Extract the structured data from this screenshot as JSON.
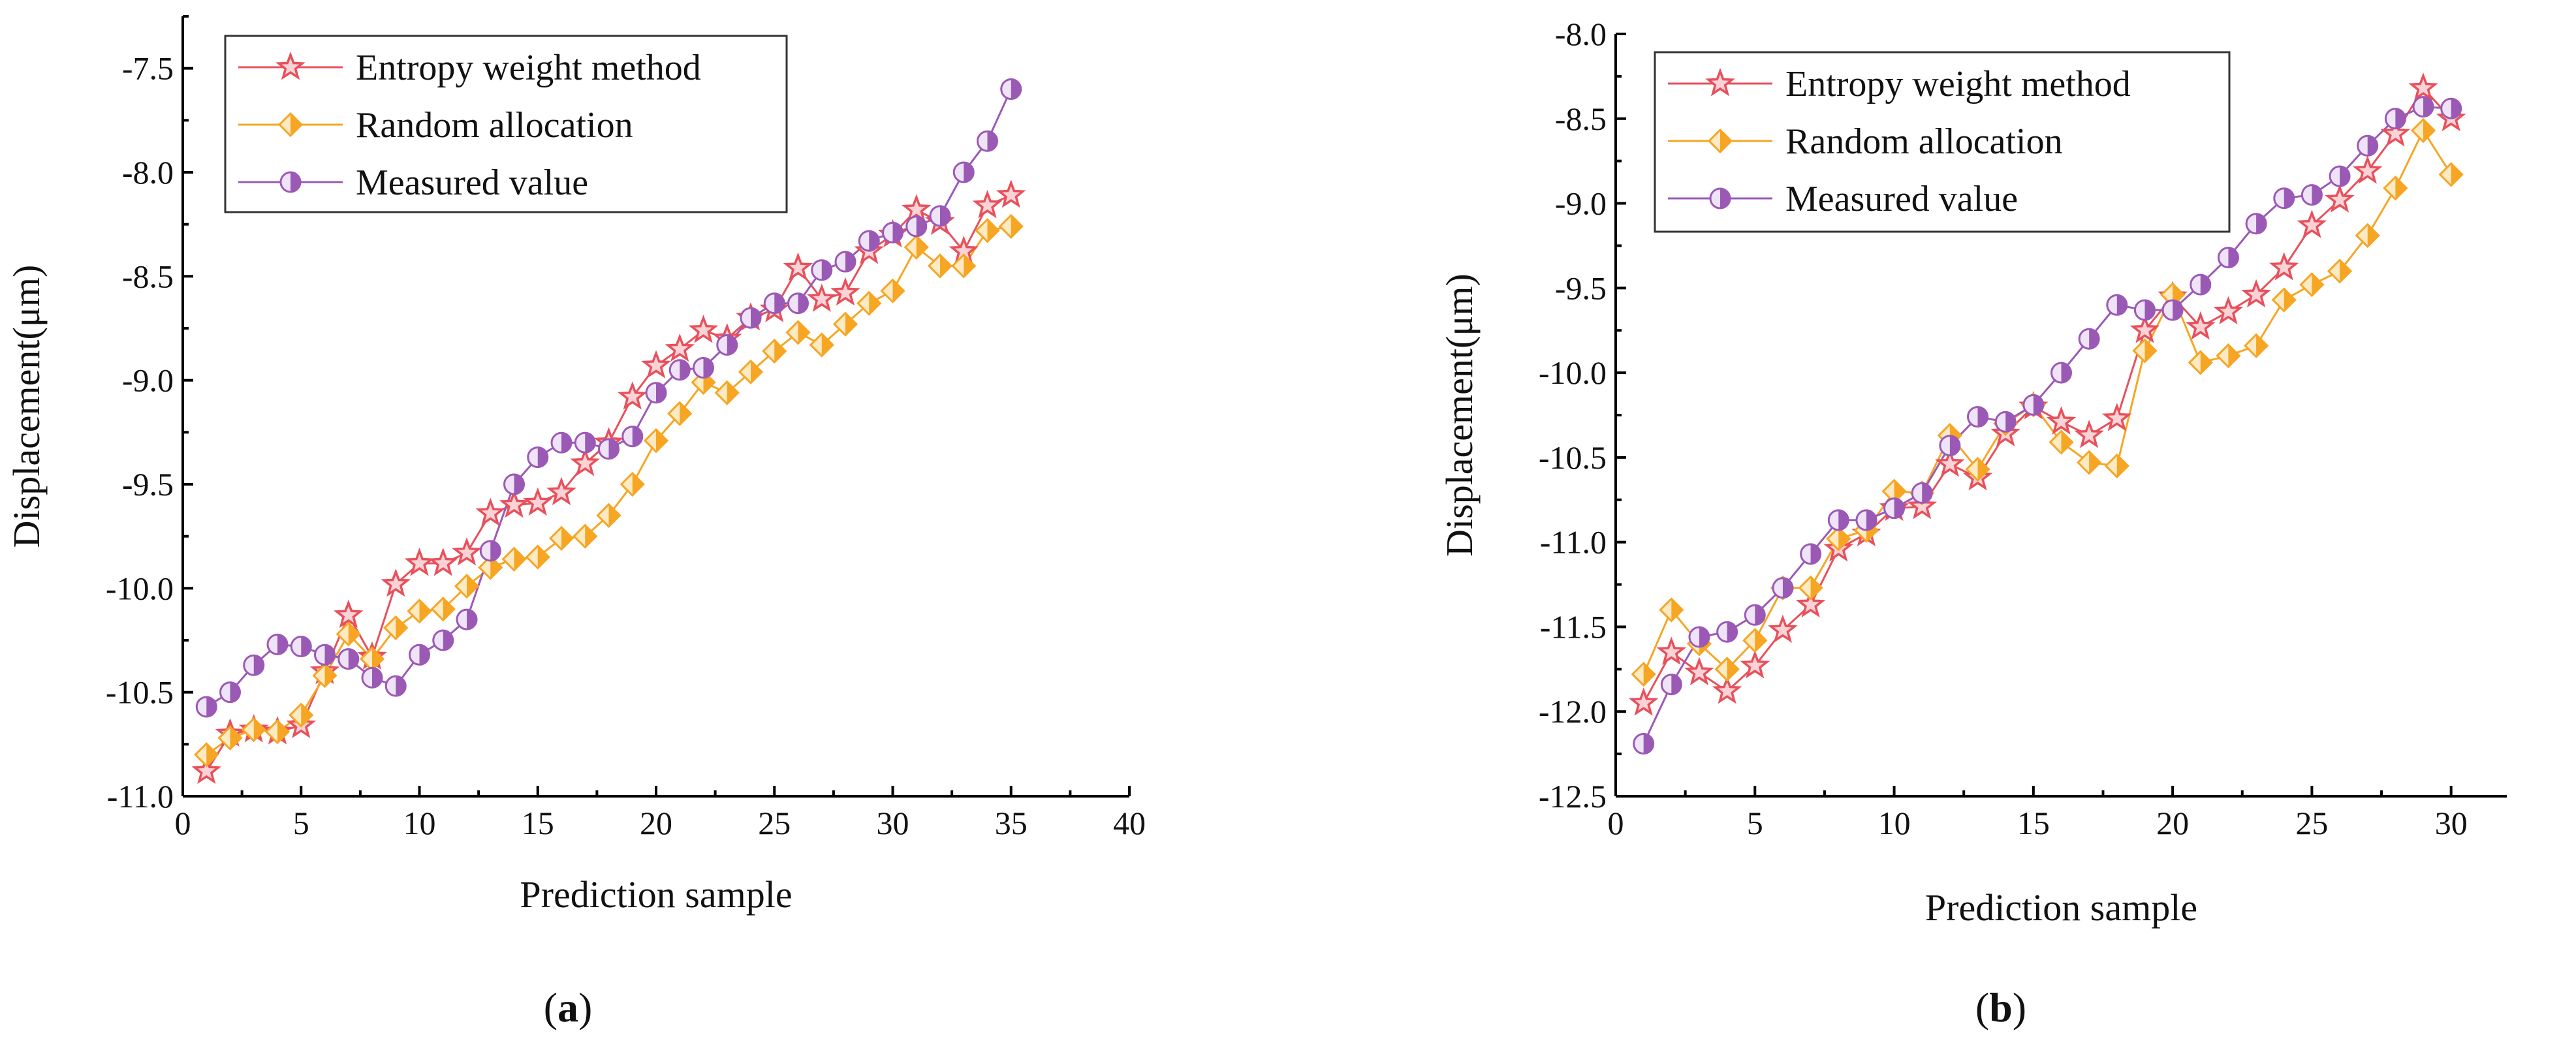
{
  "chart_data": [
    {
      "type": "line",
      "panel_label": "(a)",
      "panel_letter": "a",
      "xlabel": "Prediction sample",
      "ylabel": "Displacement(μm)",
      "xlim": [
        0,
        40
      ],
      "ylim": [
        -11.0,
        -7.25
      ],
      "xticks": [
        0,
        5,
        10,
        15,
        20,
        25,
        30,
        35,
        40
      ],
      "yticks": [
        -11.0,
        -10.5,
        -10.0,
        -9.5,
        -9.0,
        -8.5,
        -8.0,
        -7.5
      ],
      "ytick_labels": [
        "-11.0",
        "-10.5",
        "-10.0",
        "-9.5",
        "-9.0",
        "-8.5",
        "-8.0",
        "-7.5"
      ],
      "legend_position": "top-left",
      "x": [
        1,
        2,
        3,
        4,
        5,
        6,
        7,
        8,
        9,
        10,
        11,
        12,
        13,
        14,
        15,
        16,
        17,
        18,
        19,
        20,
        21,
        22,
        23,
        24,
        25,
        26,
        27,
        28,
        29,
        30,
        31,
        32,
        33,
        34,
        35
      ],
      "series": [
        {
          "name": "Entropy weight method",
          "marker": "star",
          "color": "#e8505b",
          "values": [
            -10.88,
            -10.7,
            -10.68,
            -10.69,
            -10.66,
            -10.4,
            -10.13,
            -10.33,
            -9.98,
            -9.88,
            -9.88,
            -9.83,
            -9.64,
            -9.6,
            -9.59,
            -9.54,
            -9.4,
            -9.3,
            -9.08,
            -8.93,
            -8.85,
            -8.76,
            -8.8,
            -8.7,
            -8.66,
            -8.46,
            -8.61,
            -8.58,
            -8.38,
            -8.3,
            -8.18,
            -8.24,
            -8.38,
            -8.16,
            -8.11
          ]
        },
        {
          "name": "Random allocation",
          "marker": "diamond",
          "color": "#f6a623",
          "values": [
            -10.8,
            -10.72,
            -10.68,
            -10.69,
            -10.61,
            -10.42,
            -10.22,
            -10.34,
            -10.19,
            -10.11,
            -10.1,
            -9.99,
            -9.9,
            -9.86,
            -9.85,
            -9.76,
            -9.75,
            -9.65,
            -9.5,
            -9.29,
            -9.16,
            -9.01,
            -9.06,
            -8.96,
            -8.86,
            -8.77,
            -8.83,
            -8.73,
            -8.63,
            -8.57,
            -8.36,
            -8.45,
            -8.45,
            -8.28,
            -8.26
          ]
        },
        {
          "name": "Measured value",
          "marker": "half-circle",
          "color": "#9b59b6",
          "values": [
            -10.57,
            -10.5,
            -10.37,
            -10.27,
            -10.28,
            -10.32,
            -10.34,
            -10.43,
            -10.47,
            -10.32,
            -10.25,
            -10.15,
            -9.82,
            -9.5,
            -9.37,
            -9.3,
            -9.3,
            -9.33,
            -9.27,
            -9.06,
            -8.95,
            -8.94,
            -8.83,
            -8.7,
            -8.63,
            -8.63,
            -8.47,
            -8.43,
            -8.33,
            -8.29,
            -8.26,
            -8.21,
            -8.0,
            -7.85,
            -7.6
          ]
        }
      ]
    },
    {
      "type": "line",
      "panel_label": "(b)",
      "panel_letter": "b",
      "xlabel": "Prediction sample",
      "ylabel": "Displacement(μm)",
      "xlim": [
        0,
        32
      ],
      "ylim": [
        -12.5,
        -8.0
      ],
      "xticks": [
        0,
        5,
        10,
        15,
        20,
        25,
        30
      ],
      "yticks": [
        -12.5,
        -12.0,
        -11.5,
        -11.0,
        -10.5,
        -10.0,
        -9.5,
        -9.0,
        -8.5,
        -8.0
      ],
      "ytick_labels": [
        "-12.5",
        "-12.0",
        "-11.5",
        "-11.0",
        "-10.5",
        "-10.0",
        "-9.5",
        "-9.0",
        "-8.5",
        "-8.0"
      ],
      "legend_position": "top-left",
      "x": [
        1,
        2,
        3,
        4,
        5,
        6,
        7,
        8,
        9,
        10,
        11,
        12,
        13,
        14,
        15,
        16,
        17,
        18,
        19,
        20,
        21,
        22,
        23,
        24,
        25,
        26,
        27,
        28,
        29,
        30
      ],
      "series": [
        {
          "name": "Entropy weight method",
          "marker": "star",
          "color": "#e8505b",
          "values": [
            -11.95,
            -11.65,
            -11.77,
            -11.88,
            -11.73,
            -11.52,
            -11.37,
            -11.04,
            -10.95,
            -10.8,
            -10.79,
            -10.54,
            -10.62,
            -10.36,
            -10.2,
            -10.29,
            -10.37,
            -10.27,
            -9.75,
            -9.55,
            -9.73,
            -9.64,
            -9.54,
            -9.38,
            -9.13,
            -8.98,
            -8.81,
            -8.59,
            -8.32,
            -8.5
          ]
        },
        {
          "name": "Random allocation",
          "marker": "diamond",
          "color": "#f6a623",
          "values": [
            -11.78,
            -11.4,
            -11.6,
            -11.75,
            -11.58,
            -11.27,
            -11.27,
            -10.98,
            -10.93,
            -10.7,
            -10.71,
            -10.37,
            -10.57,
            -10.3,
            -10.19,
            -10.41,
            -10.53,
            -10.55,
            -9.87,
            -9.54,
            -9.94,
            -9.9,
            -9.84,
            -9.57,
            -9.48,
            -9.4,
            -9.19,
            -8.91,
            -8.57,
            -8.83
          ]
        },
        {
          "name": "Measured value",
          "marker": "half-circle",
          "color": "#9b59b6",
          "values": [
            -12.19,
            -11.84,
            -11.56,
            -11.53,
            -11.43,
            -11.27,
            -11.07,
            -10.87,
            -10.87,
            -10.8,
            -10.71,
            -10.43,
            -10.26,
            -10.29,
            -10.19,
            -10.0,
            -9.8,
            -9.6,
            -9.63,
            -9.63,
            -9.48,
            -9.32,
            -9.12,
            -8.97,
            -8.95,
            -8.84,
            -8.66,
            -8.5,
            -8.43,
            -8.44
          ]
        }
      ]
    }
  ]
}
